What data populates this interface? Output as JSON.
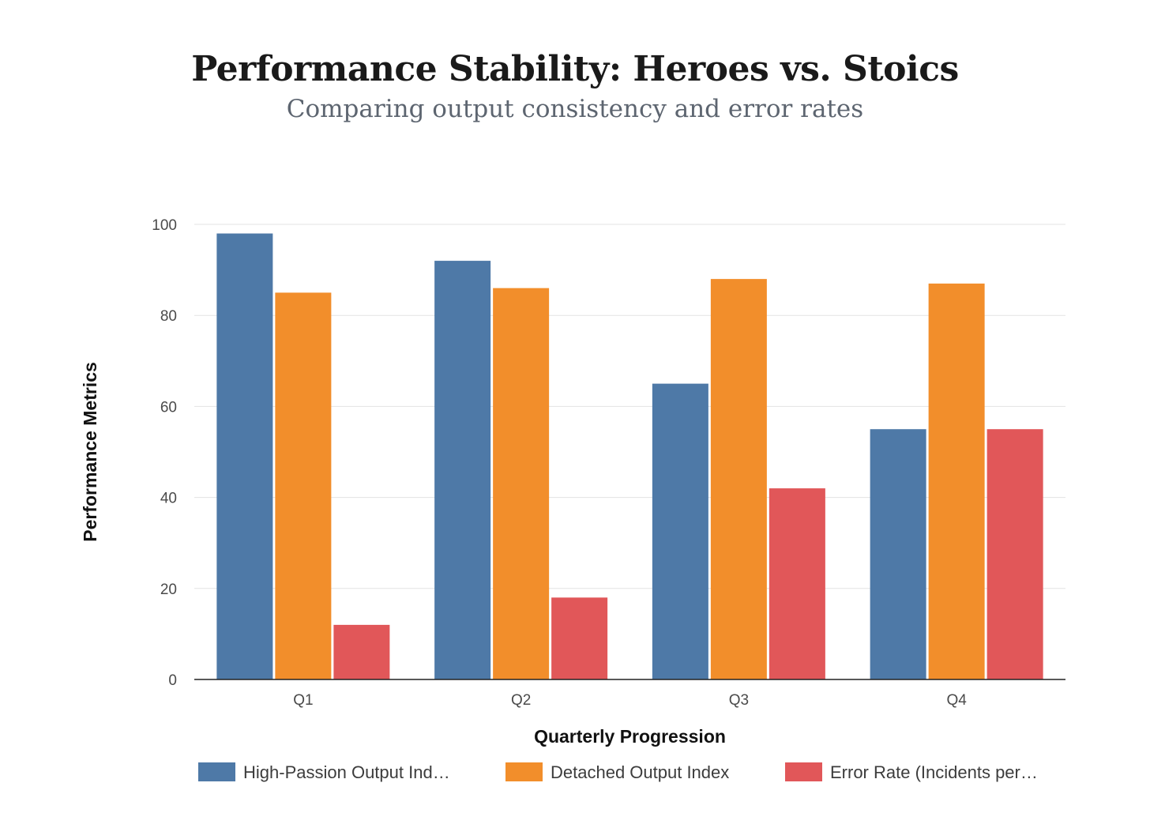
{
  "chart_data": {
    "type": "bar",
    "title": "Performance Stability: Heroes vs. Stoics",
    "subtitle": "Comparing output consistency and error rates",
    "xlabel": "Quarterly Progression",
    "ylabel": "Performance Metrics",
    "categories": [
      "Q1",
      "Q2",
      "Q3",
      "Q4"
    ],
    "ylim": [
      0,
      100
    ],
    "yticks": [
      0,
      20,
      40,
      60,
      80,
      100
    ],
    "grid": true,
    "legend_position": "bottom",
    "series": [
      {
        "name": "High-Passion Output Ind…",
        "color": "#4e79a7",
        "values": [
          98,
          92,
          65,
          55
        ]
      },
      {
        "name": "Detached Output Index",
        "color": "#f28e2b",
        "values": [
          85,
          86,
          88,
          87
        ]
      },
      {
        "name": "Error Rate (Incidents per…",
        "color": "#e15759",
        "values": [
          12,
          18,
          42,
          55
        ]
      }
    ]
  }
}
